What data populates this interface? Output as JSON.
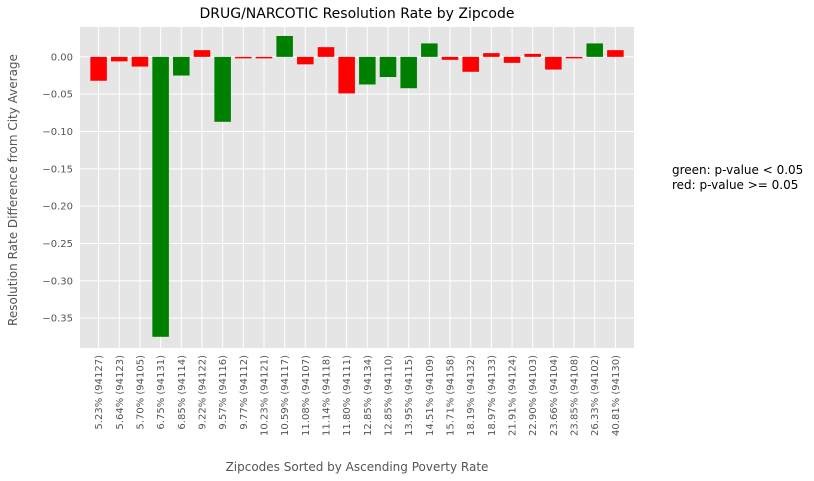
{
  "chart_data": {
    "type": "bar",
    "title": "DRUG/NARCOTIC Resolution Rate by Zipcode",
    "xlabel": "Zipcodes Sorted by Ascending Poverty Rate",
    "ylabel": "Resolution Rate Difference from City Average",
    "ylim": [
      -0.39,
      0.04
    ],
    "yticks": [
      0.0,
      -0.05,
      -0.1,
      -0.15,
      -0.2,
      -0.25,
      -0.3,
      -0.35
    ],
    "ytick_labels": [
      "0.00",
      "−0.05",
      "−0.10",
      "−0.15",
      "−0.20",
      "−0.25",
      "−0.30",
      "−0.35"
    ],
    "grid": true,
    "categories": [
      "5.23% (94127)",
      "5.64% (94123)",
      "5.70% (94105)",
      "6.75% (94131)",
      "6.85% (94114)",
      "9.22% (94122)",
      "9.57% (94116)",
      "9.77% (94112)",
      "10.23% (94121)",
      "10.59% (94117)",
      "11.08% (94107)",
      "11.14% (94118)",
      "11.80% (94111)",
      "12.85% (94134)",
      "12.85% (94110)",
      "13.95% (94115)",
      "14.51% (94109)",
      "15.71% (94158)",
      "18.19% (94132)",
      "18.97% (94133)",
      "21.91% (94124)",
      "22.90% (94103)",
      "23.66% (94104)",
      "23.85% (94108)",
      "26.33% (94102)",
      "40.81% (94130)"
    ],
    "values": [
      -0.032,
      -0.006,
      -0.013,
      -0.375,
      -0.025,
      0.009,
      -0.087,
      -0.002,
      -0.002,
      0.028,
      -0.01,
      0.013,
      -0.049,
      -0.037,
      -0.027,
      -0.042,
      0.018,
      -0.004,
      -0.02,
      0.005,
      -0.008,
      0.004,
      -0.017,
      -0.002,
      0.018,
      0.009
    ],
    "significance": [
      "red",
      "red",
      "red",
      "green",
      "green",
      "red",
      "green",
      "red",
      "red",
      "green",
      "red",
      "red",
      "red",
      "green",
      "green",
      "green",
      "green",
      "red",
      "red",
      "red",
      "red",
      "red",
      "red",
      "red",
      "green",
      "red"
    ],
    "colors": {
      "green": "#008000",
      "red": "#ff0000",
      "background": "#e5e5e5",
      "grid": "#ffffff"
    },
    "annotations": [
      "green: p-value < 0.05",
      "red: p-value >= 0.05"
    ]
  }
}
